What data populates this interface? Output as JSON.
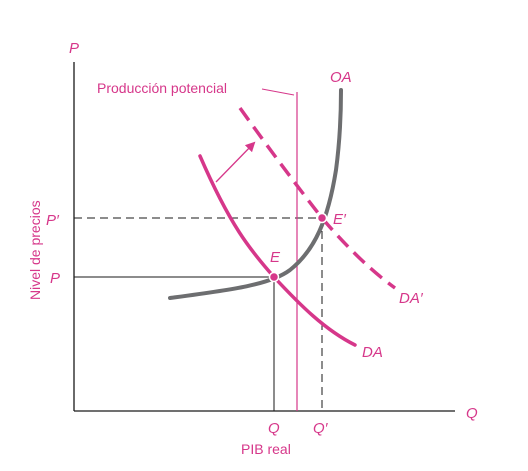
{
  "axes": {
    "y_symbol": "P",
    "x_symbol": "Q",
    "y_title": "Nivel de precios",
    "x_title": "PIB real"
  },
  "ticks": {
    "p": "P",
    "p_prime": "P′",
    "q": "Q",
    "q_prime": "Q′"
  },
  "curves": {
    "supply": "OA",
    "demand": "DA",
    "demand_shifted": "DA′",
    "potential": "Producción potencial"
  },
  "points": {
    "initial": "E",
    "new": "E′"
  },
  "colors": {
    "magenta": "#d6378a",
    "supply_gray": "#6d6e70",
    "axis": "#1a1a1a"
  }
}
